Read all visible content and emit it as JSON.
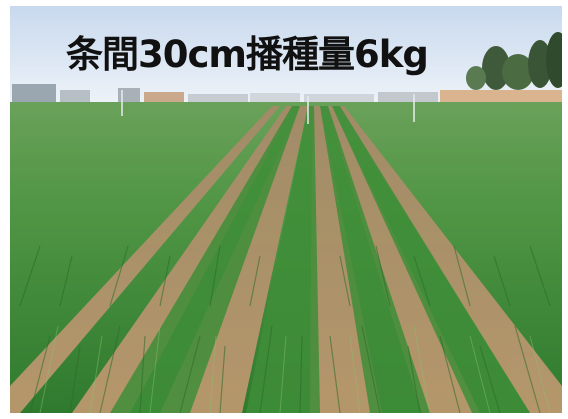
{
  "photo": {
    "caption": "条間30cm播種量6kg",
    "caption_color": "#111111",
    "subject": "wheat-field",
    "sky_color": "#dfe9f5",
    "field_color": "#3f8a3a",
    "soil_color": "#b88e68"
  }
}
